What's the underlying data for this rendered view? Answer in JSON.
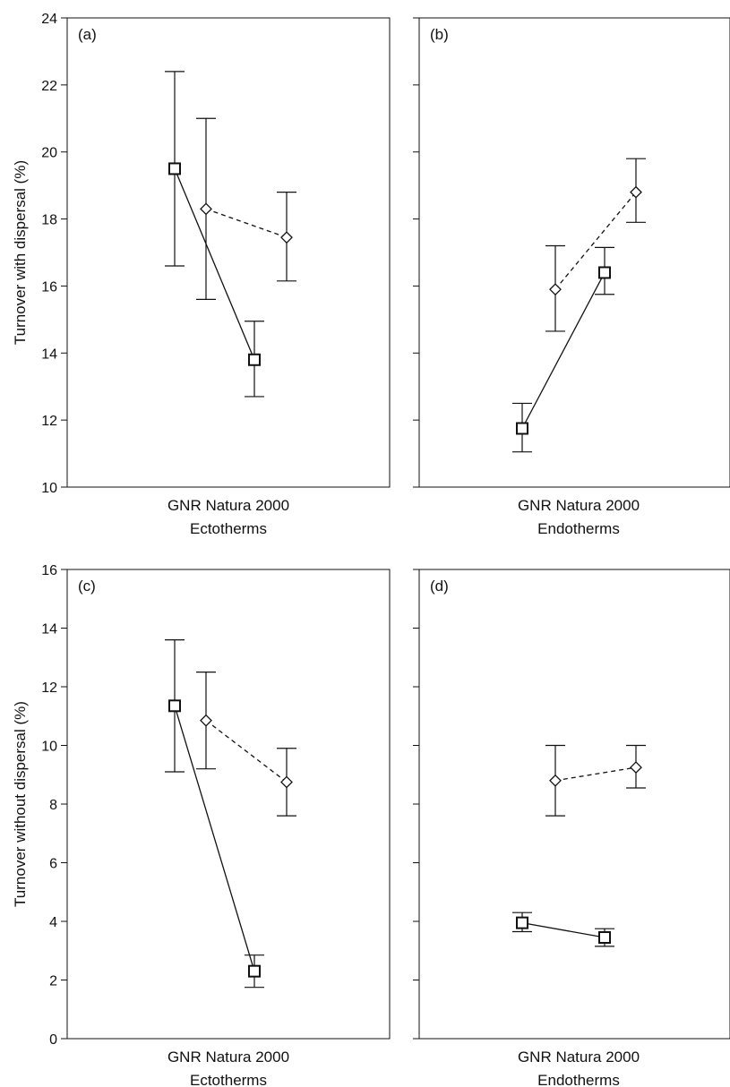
{
  "chart_data": [
    {
      "type": "line",
      "panel": "(a)",
      "x_categories": [
        "GNR",
        "Natura 2000"
      ],
      "xlabel_line1": "GNR Natura 2000",
      "xlabel_line2": "Ectotherms",
      "ylabel": "Turnover with dispersal (%)",
      "ylim": [
        10,
        24
      ],
      "yticks": [
        10,
        12,
        14,
        16,
        18,
        20,
        22,
        24
      ],
      "show_tick_labels": true,
      "grid": false,
      "series": [
        {
          "marker": "square",
          "line": "solid",
          "points": [
            {
              "x": "GNR",
              "y": 19.5,
              "lo": 16.6,
              "hi": 22.4
            },
            {
              "x": "Natura 2000",
              "y": 13.8,
              "lo": 12.7,
              "hi": 14.95
            }
          ]
        },
        {
          "marker": "diamond",
          "line": "dashed",
          "points": [
            {
              "x": "GNR",
              "y": 18.3,
              "lo": 15.6,
              "hi": 21.0
            },
            {
              "x": "Natura 2000",
              "y": 17.45,
              "lo": 16.15,
              "hi": 18.8
            }
          ]
        }
      ]
    },
    {
      "type": "line",
      "panel": "(b)",
      "x_categories": [
        "GNR",
        "Natura 2000"
      ],
      "xlabel_line1": "GNR Natura 2000",
      "xlabel_line2": "Endotherms",
      "ylabel": "",
      "ylim": [
        10,
        24
      ],
      "yticks": [
        10,
        12,
        14,
        16,
        18,
        20,
        22,
        24
      ],
      "show_tick_labels": false,
      "grid": false,
      "series": [
        {
          "marker": "square",
          "line": "solid",
          "points": [
            {
              "x": "GNR",
              "y": 11.75,
              "lo": 11.05,
              "hi": 12.5
            },
            {
              "x": "Natura 2000",
              "y": 16.4,
              "lo": 15.75,
              "hi": 17.15
            }
          ]
        },
        {
          "marker": "diamond",
          "line": "dashed",
          "points": [
            {
              "x": "GNR",
              "y": 15.9,
              "lo": 14.65,
              "hi": 17.2
            },
            {
              "x": "Natura 2000",
              "y": 18.8,
              "lo": 17.9,
              "hi": 19.8
            }
          ]
        }
      ]
    },
    {
      "type": "line",
      "panel": "(c)",
      "x_categories": [
        "GNR",
        "Natura 2000"
      ],
      "xlabel_line1": "GNR Natura 2000",
      "xlabel_line2": "Ectotherms",
      "ylabel": "Turnover without dispersal (%)",
      "ylim": [
        0,
        16
      ],
      "yticks": [
        0,
        2,
        4,
        6,
        8,
        10,
        12,
        14,
        16
      ],
      "show_tick_labels": true,
      "grid": false,
      "series": [
        {
          "marker": "square",
          "line": "solid",
          "points": [
            {
              "x": "GNR",
              "y": 11.35,
              "lo": 9.1,
              "hi": 13.6
            },
            {
              "x": "Natura 2000",
              "y": 2.3,
              "lo": 1.75,
              "hi": 2.85
            }
          ]
        },
        {
          "marker": "diamond",
          "line": "dashed",
          "points": [
            {
              "x": "GNR",
              "y": 10.85,
              "lo": 9.2,
              "hi": 12.5
            },
            {
              "x": "Natura 2000",
              "y": 8.75,
              "lo": 7.6,
              "hi": 9.9
            }
          ]
        }
      ]
    },
    {
      "type": "line",
      "panel": "(d)",
      "x_categories": [
        "GNR",
        "Natura 2000"
      ],
      "xlabel_line1": "GNR Natura 2000",
      "xlabel_line2": "Endotherms",
      "ylabel": "",
      "ylim": [
        0,
        16
      ],
      "yticks": [
        0,
        2,
        4,
        6,
        8,
        10,
        12,
        14,
        16
      ],
      "show_tick_labels": false,
      "grid": false,
      "series": [
        {
          "marker": "square",
          "line": "solid",
          "points": [
            {
              "x": "GNR",
              "y": 3.95,
              "lo": 3.65,
              "hi": 4.3
            },
            {
              "x": "Natura 2000",
              "y": 3.45,
              "lo": 3.15,
              "hi": 3.75
            }
          ]
        },
        {
          "marker": "diamond",
          "line": "dashed",
          "points": [
            {
              "x": "GNR",
              "y": 8.8,
              "lo": 7.6,
              "hi": 10.0
            },
            {
              "x": "Natura 2000",
              "y": 9.25,
              "lo": 8.55,
              "hi": 10.0
            }
          ]
        }
      ]
    }
  ]
}
